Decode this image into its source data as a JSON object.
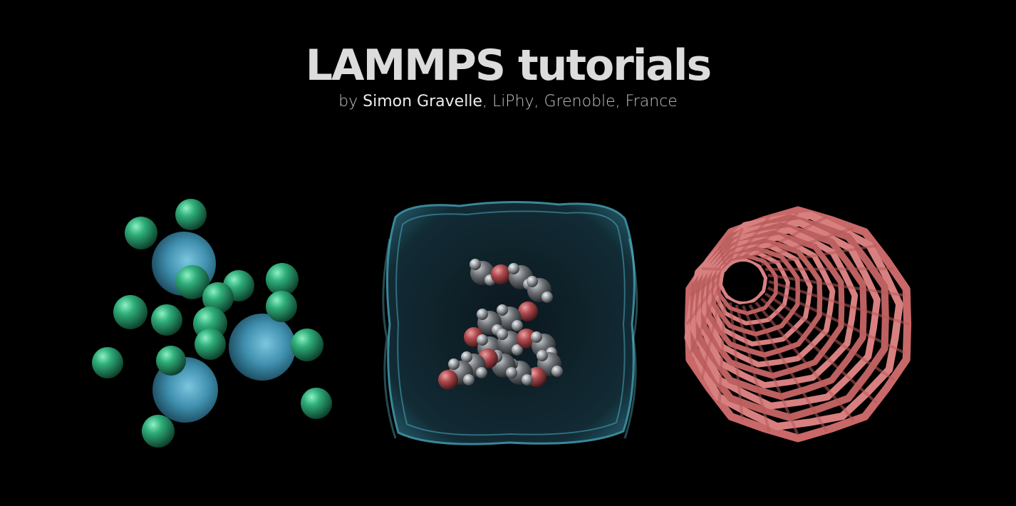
{
  "header": {
    "title": "LAMMPS tutorials",
    "subtitle_prefix": "by ",
    "author": "Simon Gravelle",
    "subtitle_suffix": ", LiPhy, Grenoble, France"
  },
  "colors": {
    "background": "#000000",
    "title": "#dcdcdc",
    "subtitle": "#c2c2c2",
    "small_sphere": "#2fae7a",
    "large_sphere": "#3f8fae",
    "water_box": "#1d4f5e",
    "oxygen": "#b04a4e",
    "hydrogen": "#9a9ea2",
    "nanotube": "#d67272"
  },
  "illustrations": [
    {
      "icon": "binary-mixture-spheres-illustration"
    },
    {
      "icon": "water-box-polymer-illustration"
    },
    {
      "icon": "carbon-nanotube-illustration"
    }
  ]
}
